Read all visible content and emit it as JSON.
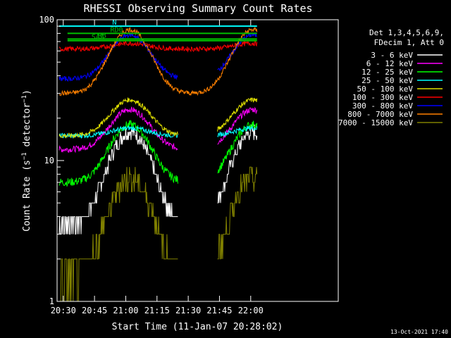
{
  "chart_data": {
    "type": "line",
    "title": "RHESSI Observing Summary Count Rates",
    "xlabel": "Start Time (11-Jan-07 20:28:02)",
    "ylabel": "Count Rate (s⁻¹ detector⁻¹)",
    "ylabel_parts": {
      "main": "Count Rate (s",
      "sup1": "−1",
      "mid": " detector",
      "sup2": "−1",
      "end": ")"
    },
    "y_scale": "log",
    "ylim": [
      1,
      100
    ],
    "xlim_minutes_since_start": [
      -1.0,
      134.0
    ],
    "x_ticks": [
      {
        "label": "20:30",
        "min": 1.97
      },
      {
        "label": "20:45",
        "min": 16.97
      },
      {
        "label": "21:00",
        "min": 31.97
      },
      {
        "label": "21:15",
        "min": 46.97
      },
      {
        "label": "21:30",
        "min": 61.97
      },
      {
        "label": "21:45",
        "min": 76.97
      },
      {
        "label": "22:00",
        "min": 91.97
      }
    ],
    "y_ticks": [
      {
        "label": "1",
        "value": 1
      },
      {
        "label": "10",
        "value": 10
      },
      {
        "label": "100",
        "value": 100
      }
    ],
    "legend_header": [
      "Det 1,3,4,5,6,9,",
      "FDecim 1, Att 0"
    ],
    "legend_position": "top-right",
    "series": [
      {
        "name": "3 - 6 keV",
        "color": "#ffffff",
        "base": 3.5,
        "peak": 16,
        "noise": 0.12,
        "quant": 1
      },
      {
        "name": "6 - 12 keV",
        "color": "#ff00ff",
        "base": 12,
        "peak": 23,
        "noise": 0.05,
        "quant": 0
      },
      {
        "name": "12 - 25 keV",
        "color": "#00ff00",
        "base": 7,
        "peak": 18,
        "noise": 0.07,
        "quant": 0
      },
      {
        "name": "25 - 50 keV",
        "color": "#00ffff",
        "base": 15,
        "peak": 17,
        "noise": 0.04,
        "quant": 0
      },
      {
        "name": "50 - 100 keV",
        "color": "#e0e000",
        "base": 15,
        "peak": 27,
        "noise": 0.04,
        "quant": 0
      },
      {
        "name": "100 - 300 keV",
        "color": "#ff0000",
        "base": 62,
        "peak": 68,
        "noise": 0.04,
        "quant": 0
      },
      {
        "name": "300 - 800 keV",
        "color": "#0000ff",
        "base": 38,
        "peak": 78,
        "noise": 0.04,
        "quant": 0
      },
      {
        "name": "800 - 7000 keV",
        "color": "#ff8000",
        "base": 30,
        "peak": 85,
        "noise": 0.04,
        "quant": 0
      },
      {
        "name": "7000 - 15000 keV",
        "color": "#808000",
        "base": 1.5,
        "peak": 7.5,
        "noise": 0.2,
        "quant": 1
      }
    ],
    "peaks_min": [
      34,
      93
    ],
    "peak_width_min": 12,
    "data_gaps_min": [
      [
        57,
        76
      ]
    ],
    "flags": [
      {
        "label": "N",
        "color": "#00ffff",
        "level": 90
      },
      {
        "label": "RD0",
        "color": "#00c000",
        "level": 80
      },
      {
        "label": "RB",
        "color": "#00c000",
        "level": 73
      },
      {
        "label": "SAA",
        "color": "#00c000",
        "level": 71
      }
    ],
    "footer": "13-Oct-2021 17:40"
  }
}
